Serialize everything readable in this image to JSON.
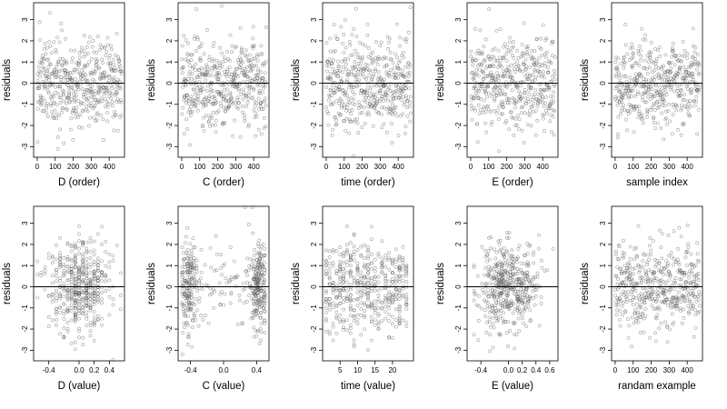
{
  "chart_data": [
    {
      "type": "scatter",
      "xlabel": "D (order)",
      "ylabel": "residuals",
      "xlim": [
        -20,
        485
      ],
      "ylim": [
        -3.5,
        3.8
      ],
      "xticks": [
        0,
        100,
        200,
        300,
        400
      ],
      "yticks": [
        -3,
        -2,
        -1,
        0,
        1,
        2,
        3
      ],
      "reference_line": 0,
      "x_distribution": "uniform",
      "x_range": [
        0,
        470
      ],
      "y_model": "normal",
      "y_sd": 1.1,
      "n_points": 470
    },
    {
      "type": "scatter",
      "xlabel": "C (order)",
      "ylabel": "residuals",
      "xlim": [
        -20,
        485
      ],
      "ylim": [
        -3.5,
        3.8
      ],
      "xticks": [
        0,
        100,
        200,
        300,
        400
      ],
      "yticks": [
        -3,
        -2,
        -1,
        0,
        1,
        2,
        3
      ],
      "reference_line": 0,
      "x_distribution": "uniform",
      "x_range": [
        0,
        470
      ],
      "y_model": "normal",
      "y_sd": 1.1,
      "n_points": 470
    },
    {
      "type": "scatter",
      "xlabel": "time (order)",
      "ylabel": "residuals",
      "xlim": [
        -20,
        485
      ],
      "ylim": [
        -3.5,
        3.8
      ],
      "xticks": [
        0,
        100,
        200,
        300,
        400
      ],
      "yticks": [
        -3,
        -2,
        -1,
        0,
        1,
        2,
        3
      ],
      "reference_line": 0,
      "x_distribution": "uniform",
      "x_range": [
        0,
        470
      ],
      "y_model": "normal",
      "y_sd": 1.1,
      "n_points": 470
    },
    {
      "type": "scatter",
      "xlabel": "E (order)",
      "ylabel": "residuals",
      "xlim": [
        -20,
        485
      ],
      "ylim": [
        -3.5,
        3.8
      ],
      "xticks": [
        0,
        100,
        200,
        300,
        400
      ],
      "yticks": [
        -3,
        -2,
        -1,
        0,
        1,
        2,
        3
      ],
      "reference_line": 0,
      "x_distribution": "uniform",
      "x_range": [
        0,
        470
      ],
      "y_model": "normal",
      "y_sd": 1.1,
      "n_points": 470
    },
    {
      "type": "scatter",
      "xlabel": "sample index",
      "ylabel": "residuals",
      "xlim": [
        -20,
        485
      ],
      "ylim": [
        -3.5,
        3.8
      ],
      "xticks": [
        0,
        100,
        200,
        300,
        400
      ],
      "yticks": [
        -3,
        -2,
        -1,
        0,
        1,
        2,
        3
      ],
      "reference_line": 0,
      "x_distribution": "uniform",
      "x_range": [
        0,
        470
      ],
      "y_model": "normal",
      "y_sd": 1.0,
      "n_points": 470
    },
    {
      "type": "scatter",
      "xlabel": "D (value)",
      "ylabel": "residuals",
      "xlim": [
        -0.6,
        0.6
      ],
      "ylim": [
        -3.5,
        3.8
      ],
      "xticks": [
        -0.4,
        0.0,
        0.2,
        0.4
      ],
      "xtick_labels": [
        "-0.4",
        "0.0",
        "0.2",
        "0.4"
      ],
      "yticks": [
        -3,
        -2,
        -1,
        0,
        1,
        2,
        3
      ],
      "reference_line": 0,
      "x_distribution": "normal",
      "x_center": 0.0,
      "x_sd": 0.2,
      "x_clip": [
        -0.55,
        0.55
      ],
      "x_discrete_step": 0.05,
      "y_model": "normal",
      "y_sd": 1.1,
      "n_points": 470
    },
    {
      "type": "scatter",
      "xlabel": "C (value)",
      "ylabel": "residuals",
      "xlim": [
        -0.55,
        0.55
      ],
      "ylim": [
        -3.5,
        3.8
      ],
      "xticks": [
        -0.4,
        0.0,
        0.4
      ],
      "xtick_labels": [
        "-0.4",
        "0.0",
        "0.4"
      ],
      "yticks": [
        -3,
        -2,
        -1,
        0,
        1,
        2,
        3
      ],
      "reference_line": 0,
      "x_distribution": "clusters",
      "x_clusters": [
        -0.42,
        0.42
      ],
      "x_cluster_sd": 0.05,
      "x_cluster_fraction": 0.7,
      "x_range": [
        -0.5,
        0.5
      ],
      "y_model": "normal",
      "y_sd": 1.1,
      "n_points": 470
    },
    {
      "type": "scatter",
      "xlabel": "time (value)",
      "ylabel": "residuals",
      "xlim": [
        0,
        26
      ],
      "ylim": [
        -3.5,
        3.8
      ],
      "xticks": [
        5,
        10,
        15,
        20
      ],
      "yticks": [
        -3,
        -2,
        -1,
        0,
        1,
        2,
        3
      ],
      "reference_line": 0,
      "x_distribution": "discrete",
      "x_range": [
        1,
        24
      ],
      "x_discrete_step": 1,
      "y_model": "normal",
      "y_sd": 1.1,
      "n_points": 470
    },
    {
      "type": "scatter",
      "xlabel": "E (value)",
      "ylabel": "residuals",
      "xlim": [
        -0.6,
        0.72
      ],
      "ylim": [
        -3.5,
        3.8
      ],
      "xticks": [
        -0.4,
        0.0,
        0.2,
        0.4,
        0.6
      ],
      "xtick_labels": [
        "-0.4",
        "0.0",
        "0.2",
        "0.4",
        "0.6"
      ],
      "yticks": [
        -3,
        -2,
        -1,
        0,
        1,
        2,
        3
      ],
      "reference_line": 0,
      "x_distribution": "normal",
      "x_center": 0.0,
      "x_sd": 0.22,
      "x_clip": [
        -0.5,
        0.65
      ],
      "y_model": "normal",
      "y_sd": 1.1,
      "n_points": 470
    },
    {
      "type": "scatter",
      "xlabel": "randam example",
      "ylabel": "residuals",
      "xlim": [
        -20,
        485
      ],
      "ylim": [
        -3.5,
        3.8
      ],
      "xticks": [
        0,
        100,
        200,
        300,
        400
      ],
      "yticks": [
        -3,
        -2,
        -1,
        0,
        1,
        2,
        3
      ],
      "reference_line": 0,
      "x_distribution": "uniform",
      "x_range": [
        0,
        470
      ],
      "y_model": "normal",
      "y_sd": 1.0,
      "n_points": 470
    }
  ],
  "style": {
    "point_color": "#555555",
    "point_opacity": 0.55,
    "axis_color": "#000000",
    "background": "#ffffff"
  }
}
